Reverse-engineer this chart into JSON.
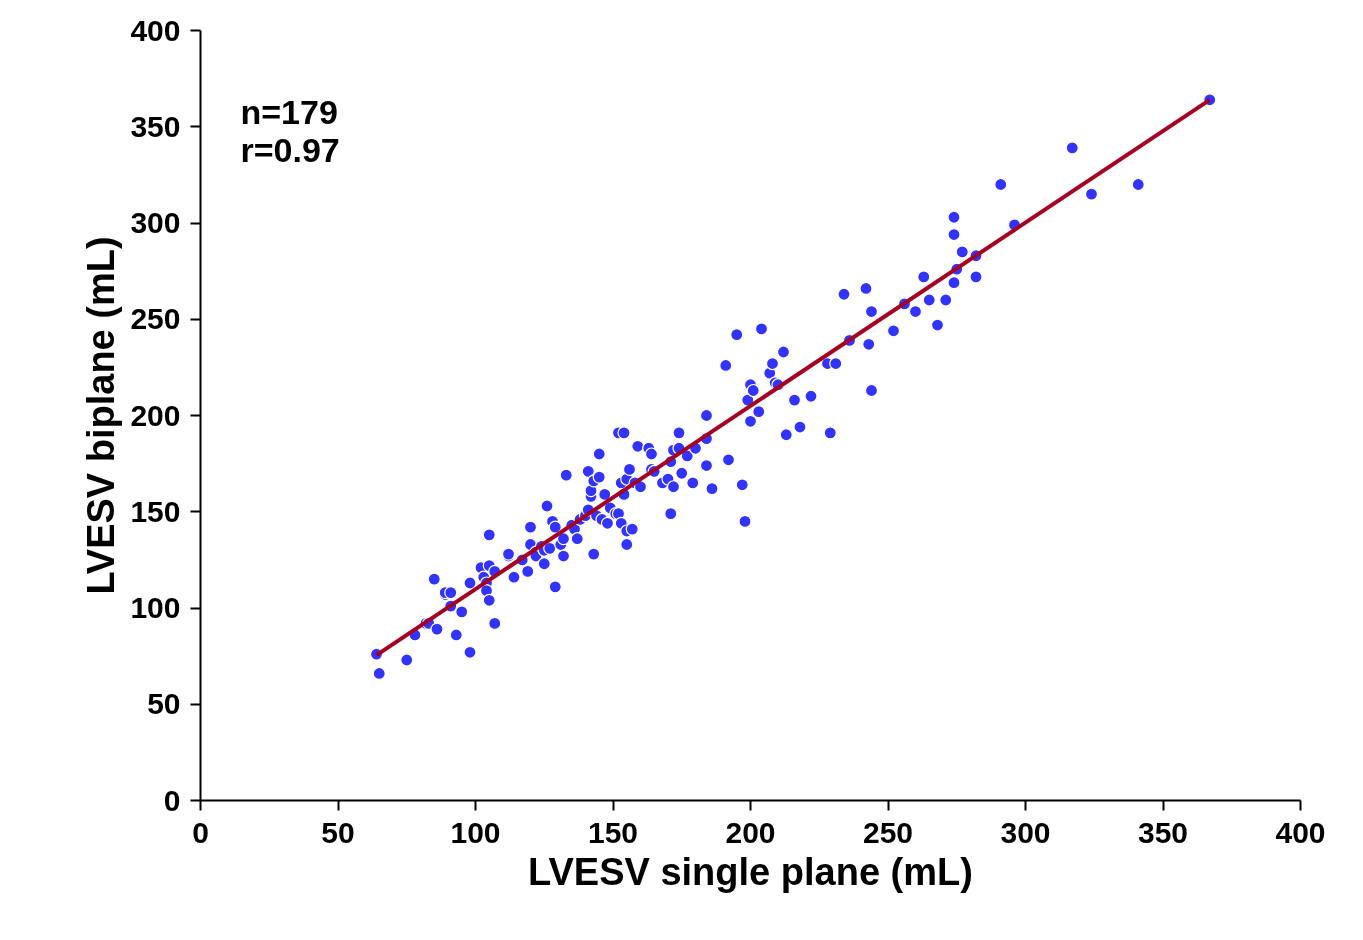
{
  "chart_data": {
    "type": "scatter",
    "xlabel": "LVESV single plane (mL)",
    "ylabel": "LVESV biplane (mL)",
    "annotations": [
      "n=179",
      "r=0.97"
    ],
    "xlim": [
      0,
      400
    ],
    "ylim": [
      0,
      400
    ],
    "xticks": [
      0,
      50,
      100,
      150,
      200,
      250,
      300,
      350,
      400
    ],
    "yticks": [
      0,
      50,
      100,
      150,
      200,
      250,
      300,
      350,
      400
    ],
    "grid": false,
    "marker": "circle",
    "series": [
      {
        "color": "#3333ff",
        "x": [
          64,
          65,
          75,
          78,
          82,
          83,
          85,
          86,
          89,
          89,
          91,
          91,
          93,
          95,
          98,
          98,
          102,
          103,
          104,
          104,
          105,
          105,
          105,
          107,
          107,
          112,
          112,
          114,
          117,
          119,
          120,
          120,
          122,
          122,
          124,
          125,
          125,
          126,
          127,
          128,
          129,
          129,
          131,
          132,
          132,
          133,
          135,
          136,
          137,
          138,
          140,
          141,
          141,
          142,
          142,
          143,
          143,
          144,
          145,
          145,
          146,
          147,
          148,
          149,
          151,
          152,
          152,
          153,
          153,
          154,
          154,
          155,
          155,
          155,
          156,
          157,
          158,
          159,
          160,
          163,
          164,
          164,
          165,
          168,
          170,
          171,
          171,
          172,
          172,
          174,
          174,
          175,
          177,
          179,
          180,
          184,
          184,
          184,
          186,
          191,
          192,
          195,
          197,
          198,
          199,
          200,
          200,
          201,
          203,
          204,
          207,
          208,
          209,
          210,
          212,
          213,
          216,
          218,
          222,
          228,
          229,
          231,
          234,
          236,
          242,
          243,
          244,
          244,
          252,
          256,
          260,
          263,
          265,
          268,
          271,
          274,
          274,
          274,
          275,
          277,
          282,
          282,
          291,
          296,
          317,
          324,
          341,
          367
        ],
        "values": [
          76,
          66,
          73,
          86,
          92,
          92,
          115,
          89,
          107,
          108,
          108,
          101,
          86,
          98,
          113,
          77,
          121,
          116,
          113,
          109,
          104,
          138,
          122,
          119,
          92,
          127,
          128,
          116,
          125,
          119,
          133,
          142,
          129,
          127,
          132,
          123,
          130,
          153,
          131,
          145,
          111,
          142,
          133,
          127,
          136,
          169,
          143,
          141,
          136,
          146,
          148,
          151,
          171,
          158,
          161,
          128,
          166,
          148,
          180,
          168,
          146,
          159,
          144,
          152,
          149,
          149,
          191,
          165,
          144,
          191,
          159,
          140,
          133,
          167,
          172,
          141,
          165,
          184,
          163,
          183,
          180,
          172,
          171,
          165,
          167,
          149,
          176,
          182,
          163,
          183,
          191,
          170,
          179,
          165,
          183,
          188,
          200,
          174,
          162,
          226,
          177,
          242,
          164,
          145,
          208,
          197,
          216,
          213,
          202,
          245,
          222,
          227,
          217,
          216,
          233,
          190,
          208,
          194,
          210,
          227,
          191,
          227,
          263,
          239,
          266,
          237,
          254,
          213,
          244,
          258,
          254,
          272,
          260,
          247,
          260,
          303,
          294,
          269,
          276,
          285,
          283,
          272,
          320,
          299,
          339,
          315,
          320,
          364
        ]
      },
      {
        "type": "line",
        "color": "#a50021",
        "marker": "none",
        "line_style": "solid",
        "x": [
          64,
          367
        ],
        "values": [
          75.5,
          364
        ]
      }
    ]
  }
}
